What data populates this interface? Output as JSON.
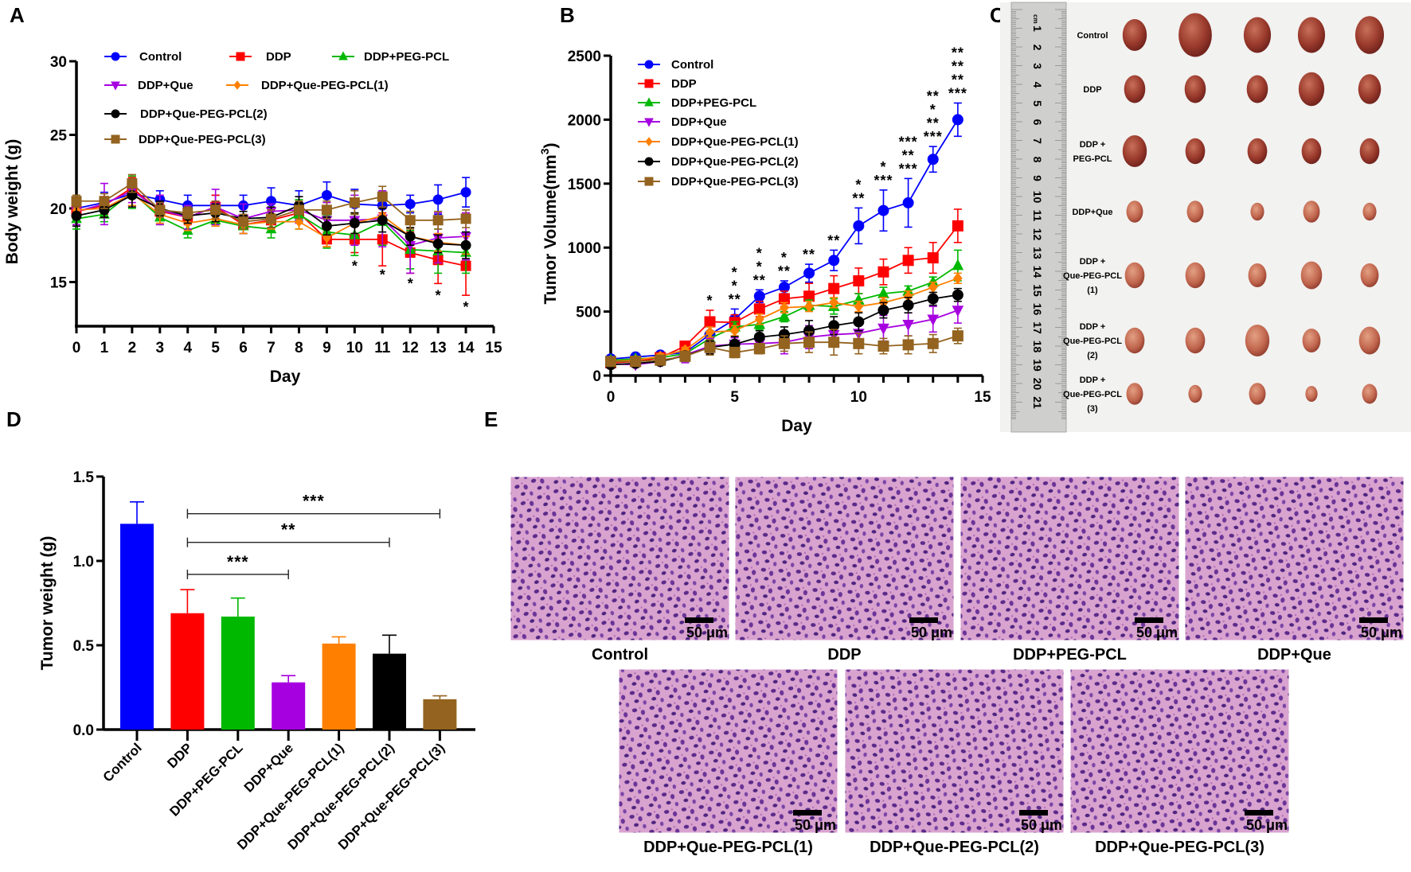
{
  "panels": {
    "A": "A",
    "B": "B",
    "C": "C",
    "D": "D",
    "E": "E"
  },
  "colors": {
    "Control": "#0000ff",
    "DDP": "#ff0000",
    "DDP+PEG-PCL": "#00b800",
    "DDP+Que": "#a600e0",
    "DDP+Que-PEG-PCL(1)": "#ff8000",
    "DDP+Que-PEG-PCL(2)": "#000000",
    "DDP+Que-PEG-PCL(3)": "#93631f",
    "sig_purple": "#7a1fa2",
    "sig_orange": "#ff8c00",
    "sig_brown": "#9b6a2a"
  },
  "chart_data": [
    {
      "id": "A",
      "type": "line",
      "title": "",
      "xlabel": "Day",
      "ylabel": "Body weight (g)",
      "xlim": [
        0,
        15
      ],
      "ylim": [
        12,
        30
      ],
      "xticks": [
        0,
        1,
        2,
        3,
        4,
        5,
        6,
        7,
        8,
        9,
        10,
        11,
        12,
        13,
        14,
        15
      ],
      "yticks": [
        15,
        20,
        25,
        30
      ],
      "x": [
        0,
        1,
        2,
        3,
        4,
        5,
        6,
        7,
        8,
        9,
        10,
        11,
        12,
        13,
        14
      ],
      "legend": "top-left",
      "series": [
        {
          "name": "Control",
          "marker": "circle",
          "values": [
            20.0,
            20.4,
            21.0,
            20.6,
            20.2,
            20.2,
            20.2,
            20.5,
            20.2,
            20.9,
            20.3,
            20.2,
            20.3,
            20.6,
            21.1
          ],
          "err": [
            0.7,
            0.7,
            0.8,
            0.6,
            0.7,
            0.7,
            0.7,
            0.9,
            1.0,
            0.9,
            1.0,
            0.9,
            0.6,
            1.0,
            1.0
          ]
        },
        {
          "name": "DDP",
          "marker": "square",
          "values": [
            19.8,
            20.2,
            21.4,
            19.8,
            19.4,
            20.1,
            18.9,
            19.2,
            19.7,
            17.9,
            17.9,
            17.9,
            17.0,
            16.5,
            16.1
          ],
          "err": [
            0.6,
            0.6,
            0.7,
            0.5,
            0.5,
            0.8,
            0.6,
            0.6,
            0.6,
            0.5,
            0.9,
            1.8,
            1.4,
            1.6,
            2.0
          ]
        },
        {
          "name": "DDP+PEG-PCL",
          "marker": "triangle-up",
          "values": [
            19.3,
            19.6,
            21.1,
            19.4,
            18.5,
            19.2,
            18.8,
            18.6,
            19.6,
            18.4,
            18.2,
            19.1,
            17.2,
            17.1,
            17.0
          ],
          "err": [
            0.7,
            0.5,
            1.1,
            0.5,
            0.5,
            0.4,
            0.5,
            0.6,
            1.0,
            1.1,
            1.4,
            1.6,
            1.3,
            1.5,
            1.4
          ]
        },
        {
          "name": "DDP+Que",
          "marker": "triangle-down",
          "values": [
            19.8,
            20.3,
            21.2,
            19.9,
            19.4,
            20.1,
            19.3,
            19.8,
            19.9,
            19.2,
            19.2,
            19.3,
            17.5,
            18.0,
            18.1
          ],
          "err": [
            0.9,
            1.4,
            0.8,
            1.0,
            0.8,
            1.2,
            1.0,
            0.5,
            0.9,
            1.2,
            1.7,
            1.9,
            1.9,
            1.7,
            1.6
          ]
        },
        {
          "name": "DDP+Que-PEG-PCL(1)",
          "marker": "diamond",
          "values": [
            19.9,
            20.0,
            21.0,
            19.6,
            19.0,
            19.3,
            18.9,
            19.1,
            19.1,
            18.0,
            19.0,
            19.5,
            18.1,
            17.7,
            17.5
          ],
          "err": [
            0.6,
            0.6,
            0.8,
            0.6,
            0.5,
            0.5,
            0.6,
            0.5,
            0.5,
            0.6,
            0.7,
            0.5,
            0.6,
            0.6,
            0.6
          ]
        },
        {
          "name": "DDP+Que-PEG-PCL(2)",
          "marker": "circle",
          "values": [
            19.5,
            19.9,
            20.9,
            20.0,
            19.5,
            19.7,
            19.3,
            19.4,
            20.2,
            18.8,
            19.0,
            19.2,
            18.1,
            17.6,
            17.5
          ],
          "err": [
            0.7,
            0.5,
            0.8,
            0.5,
            0.5,
            0.6,
            0.5,
            0.7,
            0.6,
            0.6,
            0.7,
            0.8,
            0.6,
            0.6,
            0.9
          ]
        },
        {
          "name": "DDP+Que-PEG-PCL(3)",
          "marker": "square",
          "values": [
            20.5,
            20.5,
            21.7,
            19.9,
            19.7,
            19.9,
            19.1,
            19.3,
            19.9,
            19.9,
            20.4,
            20.8,
            19.2,
            19.2,
            19.3
          ],
          "err": [
            0.4,
            0.5,
            0.6,
            0.5,
            0.4,
            0.6,
            0.5,
            0.6,
            0.6,
            0.6,
            0.8,
            0.7,
            0.6,
            0.6,
            0.6
          ]
        }
      ],
      "annotations": [
        {
          "x": 10,
          "y": 16.2,
          "text": "*",
          "color": "sig_brown"
        },
        {
          "x": 11,
          "y": 15.6,
          "text": "*",
          "color": "sig_brown"
        },
        {
          "x": 12,
          "y": 15.0,
          "text": "*",
          "color": "sig_brown"
        },
        {
          "x": 13,
          "y": 14.2,
          "text": "*",
          "color": "sig_brown"
        },
        {
          "x": 14,
          "y": 13.4,
          "text": "*",
          "color": "sig_brown"
        }
      ]
    },
    {
      "id": "B",
      "type": "line",
      "title": "",
      "xlabel": "Day",
      "ylabel": "Tumor Volume(mm",
      "ylabel_sup": "3",
      "ylabel_end": ")",
      "xlim": [
        0,
        15
      ],
      "ylim": [
        0,
        2500
      ],
      "xticks": [
        0,
        5,
        10,
        15
      ],
      "yticks": [
        0,
        500,
        1000,
        1500,
        2000,
        2500
      ],
      "x": [
        0,
        1,
        2,
        3,
        4,
        5,
        6,
        7,
        8,
        9,
        10,
        11,
        12,
        13,
        14
      ],
      "legend": "top-left",
      "series": [
        {
          "name": "Control",
          "marker": "circle",
          "values": [
            130,
            145,
            160,
            180,
            320,
            440,
            620,
            690,
            800,
            900,
            1170,
            1290,
            1350,
            1690,
            2000
          ],
          "err": [
            20,
            20,
            20,
            20,
            60,
            80,
            50,
            50,
            70,
            80,
            140,
            160,
            190,
            100,
            130
          ]
        },
        {
          "name": "DDP",
          "marker": "square",
          "values": [
            100,
            110,
            140,
            230,
            420,
            415,
            520,
            600,
            620,
            680,
            740,
            810,
            900,
            920,
            1170
          ],
          "err": [
            20,
            20,
            20,
            20,
            90,
            60,
            60,
            60,
            100,
            100,
            100,
            100,
            100,
            120,
            130
          ]
        },
        {
          "name": "DDP+PEG-PCL",
          "marker": "triangle-up",
          "values": [
            120,
            130,
            140,
            170,
            290,
            380,
            400,
            460,
            550,
            540,
            590,
            640,
            660,
            730,
            860
          ],
          "err": [
            20,
            20,
            20,
            20,
            40,
            40,
            40,
            40,
            40,
            60,
            50,
            50,
            40,
            40,
            120
          ]
        },
        {
          "name": "DDP+Que",
          "marker": "triangle-down",
          "values": [
            90,
            85,
            110,
            160,
            230,
            245,
            250,
            260,
            300,
            320,
            330,
            370,
            400,
            440,
            510
          ],
          "err": [
            20,
            20,
            20,
            60,
            60,
            50,
            60,
            90,
            90,
            70,
            80,
            100,
            90,
            100,
            100
          ]
        },
        {
          "name": "DDP+Que-PEG-PCL(1)",
          "marker": "diamond",
          "values": [
            110,
            120,
            150,
            200,
            340,
            350,
            440,
            530,
            540,
            570,
            540,
            570,
            620,
            690,
            760
          ],
          "err": [
            20,
            20,
            20,
            20,
            40,
            40,
            40,
            40,
            40,
            40,
            40,
            40,
            40,
            40,
            40
          ]
        },
        {
          "name": "DDP+Que-PEG-PCL(2)",
          "marker": "circle",
          "values": [
            85,
            95,
            110,
            155,
            220,
            245,
            300,
            320,
            350,
            390,
            420,
            510,
            550,
            600,
            630
          ],
          "err": [
            20,
            20,
            20,
            30,
            50,
            60,
            50,
            60,
            80,
            70,
            70,
            60,
            60,
            50,
            50
          ]
        },
        {
          "name": "DDP+Que-PEG-PCL(3)",
          "marker": "square",
          "values": [
            110,
            110,
            120,
            150,
            220,
            180,
            210,
            250,
            260,
            260,
            250,
            230,
            240,
            250,
            310
          ],
          "err": [
            30,
            30,
            30,
            40,
            60,
            40,
            40,
            60,
            80,
            100,
            80,
            60,
            70,
            70,
            60
          ]
        }
      ],
      "annotations": [
        {
          "x": 4,
          "stack": [
            {
              "text": "*",
              "color": "sig_orange"
            }
          ]
        },
        {
          "x": 5,
          "stack": [
            {
              "text": "**",
              "color": "sig_brown"
            },
            {
              "text": "*",
              "color": "DDP+Que-PEG-PCL(2)"
            },
            {
              "text": "*",
              "color": "sig_purple"
            }
          ]
        },
        {
          "x": 6,
          "stack": [
            {
              "text": "**",
              "color": "sig_brown"
            },
            {
              "text": "*",
              "color": "sig_purple"
            },
            {
              "text": "*",
              "color": "DDP+Que-PEG-PCL(2)"
            }
          ]
        },
        {
          "x": 7,
          "stack": [
            {
              "text": "**",
              "color": "sig_brown"
            },
            {
              "text": "*",
              "color": "DDP+Que-PEG-PCL(2)"
            }
          ]
        },
        {
          "x": 8,
          "stack": [
            {
              "text": "**",
              "color": "sig_brown"
            }
          ]
        },
        {
          "x": 9,
          "stack": [
            {
              "text": "**",
              "color": "sig_brown"
            }
          ]
        },
        {
          "x": 10,
          "stack": [
            {
              "text": "**",
              "color": "sig_brown"
            },
            {
              "text": "*",
              "color": "DDP+Que-PEG-PCL(2)"
            }
          ]
        },
        {
          "x": 11,
          "stack": [
            {
              "text": "***",
              "color": "sig_brown"
            },
            {
              "text": "*",
              "color": "DDP+Que-PEG-PCL(2)"
            }
          ]
        },
        {
          "x": 12,
          "stack": [
            {
              "text": "***",
              "color": "sig_brown"
            },
            {
              "text": "**",
              "color": "DDP+Que-PEG-PCL(2)"
            },
            {
              "text": "***",
              "color": "sig_purple"
            }
          ]
        },
        {
          "x": 13,
          "stack": [
            {
              "text": "***",
              "color": "sig_brown"
            },
            {
              "text": "**",
              "color": "DDP+Que-PEG-PCL(2)"
            },
            {
              "text": "*",
              "color": "sig_orange"
            },
            {
              "text": "**",
              "color": "sig_purple"
            }
          ]
        },
        {
          "x": 14,
          "stack": [
            {
              "text": "***",
              "color": "sig_brown"
            },
            {
              "text": "**",
              "color": "DDP+Que-PEG-PCL(2)"
            },
            {
              "text": "**",
              "color": "sig_orange"
            },
            {
              "text": "**",
              "color": "sig_purple"
            }
          ]
        }
      ]
    },
    {
      "id": "D",
      "type": "bar",
      "title": "",
      "xlabel": "",
      "ylabel": "Tumor weight (g)",
      "ylim": [
        0,
        1.5
      ],
      "yticks": [
        "0.0",
        "0.5",
        "1.0",
        "1.5"
      ],
      "categories": [
        "Control",
        "DDP",
        "DDP+PEG-PCL",
        "DDP+Que",
        "DDP+Que-PEG-PCL(1)",
        "DDP+Que-PEG-PCL(2)",
        "DDP+Que-PEG-PCL(3)"
      ],
      "values": [
        1.22,
        0.69,
        0.67,
        0.28,
        0.51,
        0.45,
        0.18
      ],
      "err": [
        0.13,
        0.14,
        0.11,
        0.04,
        0.04,
        0.11,
        0.02
      ],
      "brackets": [
        {
          "from": 1,
          "to": 3,
          "y": 0.92,
          "label": "***"
        },
        {
          "from": 1,
          "to": 5,
          "y": 1.11,
          "label": "**"
        },
        {
          "from": 1,
          "to": 6,
          "y": 1.28,
          "label": "***"
        }
      ]
    }
  ],
  "photo": {
    "ruler_unit": "cm",
    "ruler_numbers": [
      "1",
      "2",
      "3",
      "4",
      "5",
      "6",
      "7",
      "8",
      "9",
      "10",
      "11",
      "12",
      "13",
      "14",
      "15",
      "16",
      "17",
      "18",
      "19",
      "20",
      "21"
    ],
    "rows": [
      {
        "label": [
          "Control"
        ]
      },
      {
        "label": [
          "DDP"
        ]
      },
      {
        "label": [
          "DDP +",
          "PEG-PCL"
        ]
      },
      {
        "label": [
          "DDP+Que"
        ]
      },
      {
        "label": [
          "DDP +",
          "Que-PEG-PCL",
          "(1)"
        ]
      },
      {
        "label": [
          "DDP +",
          "Que-PEG-PCL",
          "(2)"
        ]
      },
      {
        "label": [
          "DDP +",
          "Que-PEG-PCL",
          "(3)"
        ]
      }
    ]
  },
  "histology": {
    "scale_bar": "50 μm",
    "images": [
      {
        "label": "Control"
      },
      {
        "label": "DDP"
      },
      {
        "label": "DDP+PEG-PCL"
      },
      {
        "label": "DDP+Que"
      },
      {
        "label": "DDP+Que-PEG-PCL(1)"
      },
      {
        "label": "DDP+Que-PEG-PCL(2)"
      },
      {
        "label": "DDP+Que-PEG-PCL(3)"
      }
    ]
  }
}
